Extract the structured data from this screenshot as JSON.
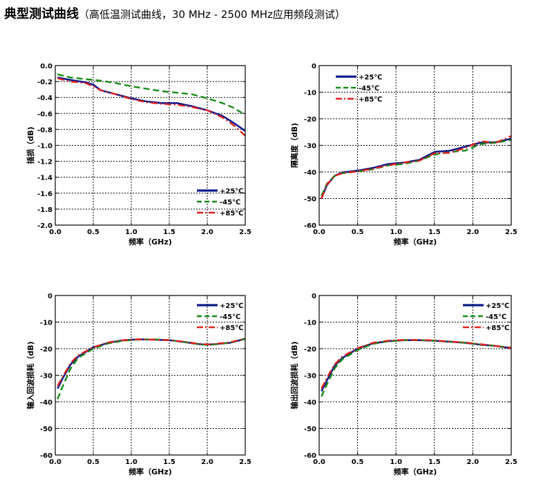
{
  "heading": {
    "title": "典型测试曲线",
    "subtitle": "（高低温测试曲线，30 MHz - 2500 MHz应用频段测试）"
  },
  "colors": {
    "series_25": "#0d1a8c",
    "series_m45": "#138a14",
    "series_85": "#e0201c",
    "grid": "#000000"
  },
  "chart_data": [
    {
      "type": "line",
      "title": "",
      "xlabel": "频率（GHz)",
      "ylabel": "插损（dB)",
      "xlim": [
        0,
        2.5
      ],
      "ylim": [
        -2.0,
        0.0
      ],
      "xticks": [
        0.0,
        0.5,
        1.0,
        1.5,
        2.0,
        2.5
      ],
      "xtick_labels": [
        "0.0",
        "0.5",
        "1.0",
        "1.5",
        "2.0",
        "2.5"
      ],
      "yticks": [
        0.0,
        -0.2,
        -0.4,
        -0.6,
        -0.8,
        -1.0,
        -1.2,
        -1.4,
        -1.6,
        -1.8,
        -2.0
      ],
      "ytick_labels": [
        "0.0",
        "-0.2",
        "-0.4",
        "-0.6",
        "-0.8",
        "-1.0",
        "-1.2",
        "-1.4",
        "-1.6",
        "-1.8",
        "-2.0"
      ],
      "grid": true,
      "legend_position": "bottom-right",
      "series": [
        {
          "name": "+25℃",
          "style": "solid",
          "x": [
            0.03,
            0.2,
            0.4,
            0.5,
            0.6,
            0.8,
            1.0,
            1.2,
            1.4,
            1.6,
            1.8,
            2.0,
            2.2,
            2.35,
            2.5
          ],
          "y": [
            -0.15,
            -0.18,
            -0.21,
            -0.24,
            -0.31,
            -0.36,
            -0.41,
            -0.45,
            -0.47,
            -0.47,
            -0.51,
            -0.56,
            -0.63,
            -0.72,
            -0.82
          ]
        },
        {
          "name": "-45℃",
          "style": "dash",
          "x": [
            0.03,
            0.2,
            0.4,
            0.6,
            0.8,
            1.0,
            1.2,
            1.4,
            1.6,
            1.8,
            2.0,
            2.2,
            2.35,
            2.5
          ],
          "y": [
            -0.11,
            -0.15,
            -0.17,
            -0.19,
            -0.22,
            -0.26,
            -0.29,
            -0.32,
            -0.34,
            -0.36,
            -0.41,
            -0.47,
            -0.53,
            -0.62
          ]
        },
        {
          "name": "+85℃",
          "style": "dashdot",
          "x": [
            0.03,
            0.2,
            0.4,
            0.5,
            0.6,
            0.8,
            1.0,
            1.2,
            1.4,
            1.6,
            1.8,
            2.0,
            2.2,
            2.35,
            2.5
          ],
          "y": [
            -0.16,
            -0.2,
            -0.22,
            -0.26,
            -0.31,
            -0.36,
            -0.42,
            -0.46,
            -0.48,
            -0.49,
            -0.52,
            -0.56,
            -0.65,
            -0.75,
            -0.88
          ]
        }
      ]
    },
    {
      "type": "line",
      "title": "",
      "xlabel": "频率（GHz)",
      "ylabel": "隔离度（dB)",
      "xlim": [
        0,
        2.5
      ],
      "ylim": [
        -60,
        0
      ],
      "xticks": [
        0.0,
        0.5,
        1.0,
        1.5,
        2.0,
        2.5
      ],
      "xtick_labels": [
        "0.0",
        "0.5",
        "1.0",
        "1.5",
        "2.0",
        "2.5"
      ],
      "yticks": [
        0,
        -10,
        -20,
        -30,
        -40,
        -50,
        -60
      ],
      "ytick_labels": [
        "0",
        "-10",
        "-20",
        "-30",
        "-40",
        "-50",
        "-60"
      ],
      "grid": true,
      "legend_position": "top-left",
      "series": [
        {
          "name": "+25℃",
          "style": "solid",
          "x": [
            0.03,
            0.1,
            0.2,
            0.3,
            0.5,
            0.7,
            0.9,
            1.1,
            1.3,
            1.5,
            1.7,
            1.9,
            2.1,
            2.3,
            2.5
          ],
          "y": [
            -50,
            -45,
            -41.5,
            -40.2,
            -39.5,
            -38.5,
            -37,
            -36.5,
            -35.5,
            -32.5,
            -32,
            -30.5,
            -29,
            -28.8,
            -27.5
          ]
        },
        {
          "name": "-45℃",
          "style": "dash",
          "x": [
            0.03,
            0.1,
            0.2,
            0.3,
            0.5,
            0.7,
            0.9,
            1.1,
            1.3,
            1.5,
            1.7,
            1.9,
            2.1,
            2.3,
            2.5
          ],
          "y": [
            -49,
            -44.5,
            -41.5,
            -40.5,
            -39.8,
            -39,
            -37.5,
            -37,
            -35.8,
            -33.5,
            -32.5,
            -32,
            -29.5,
            -29,
            -28
          ]
        },
        {
          "name": "+85℃",
          "style": "dashdot",
          "x": [
            0.03,
            0.1,
            0.2,
            0.3,
            0.5,
            0.7,
            0.9,
            1.1,
            1.3,
            1.5,
            1.7,
            1.9,
            2.1,
            2.3,
            2.5
          ],
          "y": [
            -50,
            -44.8,
            -41.5,
            -40.5,
            -39.8,
            -38.8,
            -37.5,
            -36.5,
            -35.8,
            -33,
            -32.8,
            -31,
            -28.5,
            -29,
            -26.5
          ]
        }
      ]
    },
    {
      "type": "line",
      "title": "",
      "xlabel": "频率（GHz)",
      "ylabel": "输入回波损耗（dB)",
      "xlim": [
        0,
        2.5
      ],
      "ylim": [
        -60,
        0
      ],
      "xticks": [
        0.0,
        0.5,
        1.0,
        1.5,
        2.0,
        2.5
      ],
      "xtick_labels": [
        "0.0",
        "0.5",
        "1.0",
        "1.5",
        "2.0",
        "2.5"
      ],
      "yticks": [
        0,
        -10,
        -20,
        -30,
        -40,
        -50,
        -60
      ],
      "ytick_labels": [
        "0",
        "-10",
        "-20",
        "-30",
        "-40",
        "-50",
        "-60"
      ],
      "grid": true,
      "legend_position": "top-right",
      "series": [
        {
          "name": "+25℃",
          "style": "solid",
          "x": [
            0.03,
            0.1,
            0.2,
            0.3,
            0.5,
            0.7,
            0.9,
            1.1,
            1.3,
            1.5,
            1.7,
            1.9,
            2.0,
            2.1,
            2.3,
            2.5
          ],
          "y": [
            -35,
            -31,
            -26,
            -23,
            -19.5,
            -17.8,
            -16.8,
            -16.5,
            -16.6,
            -16.8,
            -17.5,
            -18.3,
            -18.5,
            -18.3,
            -17.8,
            -16.3
          ]
        },
        {
          "name": "-45℃",
          "style": "dash",
          "x": [
            0.03,
            0.1,
            0.2,
            0.3,
            0.5,
            0.7,
            0.9,
            1.1,
            1.3,
            1.5,
            1.7,
            1.9,
            2.0,
            2.1,
            2.3,
            2.5
          ],
          "y": [
            -39,
            -34,
            -27.5,
            -23.5,
            -20,
            -18,
            -17,
            -16.6,
            -16.5,
            -16.8,
            -17.5,
            -18.4,
            -18.6,
            -18.4,
            -17.8,
            -16.2
          ]
        },
        {
          "name": "+85℃",
          "style": "dashdot",
          "x": [
            0.03,
            0.1,
            0.2,
            0.3,
            0.5,
            0.7,
            0.9,
            1.1,
            1.3,
            1.5,
            1.7,
            1.9,
            2.0,
            2.1,
            2.3,
            2.5
          ],
          "y": [
            -34,
            -30.5,
            -25.5,
            -22.5,
            -19.5,
            -17.6,
            -16.8,
            -16.5,
            -16.6,
            -16.8,
            -17.4,
            -18.2,
            -18.4,
            -18.2,
            -17.6,
            -16.2
          ]
        }
      ]
    },
    {
      "type": "line",
      "title": "",
      "xlabel": "频率（GHz)",
      "ylabel": "输出回波损耗（dB)",
      "xlim": [
        0,
        2.5
      ],
      "ylim": [
        -60,
        0
      ],
      "xticks": [
        0.0,
        0.5,
        1.0,
        1.5,
        2.0,
        2.5
      ],
      "xtick_labels": [
        "0.0",
        "0.5",
        "1.0",
        "1.5",
        "2.0",
        "2.5"
      ],
      "yticks": [
        0,
        -10,
        -20,
        -30,
        -40,
        -50,
        -60
      ],
      "ytick_labels": [
        "0",
        "-10",
        "-20",
        "-30",
        "-40",
        "-50",
        "-60"
      ],
      "grid": true,
      "legend_position": "top-right",
      "series": [
        {
          "name": "+25℃",
          "style": "solid",
          "x": [
            0.03,
            0.1,
            0.2,
            0.3,
            0.5,
            0.7,
            0.9,
            1.1,
            1.3,
            1.5,
            1.7,
            1.9,
            2.1,
            2.3,
            2.5
          ],
          "y": [
            -36,
            -32,
            -26.5,
            -23.5,
            -20,
            -18,
            -17.2,
            -16.8,
            -16.8,
            -17,
            -17.4,
            -17.8,
            -18.5,
            -19,
            -19.8
          ]
        },
        {
          "name": "-45℃",
          "style": "dash",
          "x": [
            0.03,
            0.1,
            0.2,
            0.3,
            0.5,
            0.7,
            0.9,
            1.1,
            1.3,
            1.5,
            1.7,
            1.9,
            2.1,
            2.3,
            2.5
          ],
          "y": [
            -38,
            -33.5,
            -27.5,
            -24,
            -20.5,
            -18.2,
            -17.2,
            -16.8,
            -16.8,
            -17,
            -17.3,
            -17.8,
            -18.4,
            -19,
            -19.6
          ]
        },
        {
          "name": "+85℃",
          "style": "dashdot",
          "x": [
            0.03,
            0.1,
            0.2,
            0.3,
            0.5,
            0.7,
            0.9,
            1.1,
            1.3,
            1.5,
            1.7,
            1.9,
            2.1,
            2.3,
            2.5
          ],
          "y": [
            -35,
            -31,
            -26,
            -23,
            -19.8,
            -17.8,
            -17,
            -16.7,
            -16.7,
            -16.9,
            -17.3,
            -17.7,
            -18.3,
            -19,
            -19.7
          ]
        }
      ]
    }
  ]
}
